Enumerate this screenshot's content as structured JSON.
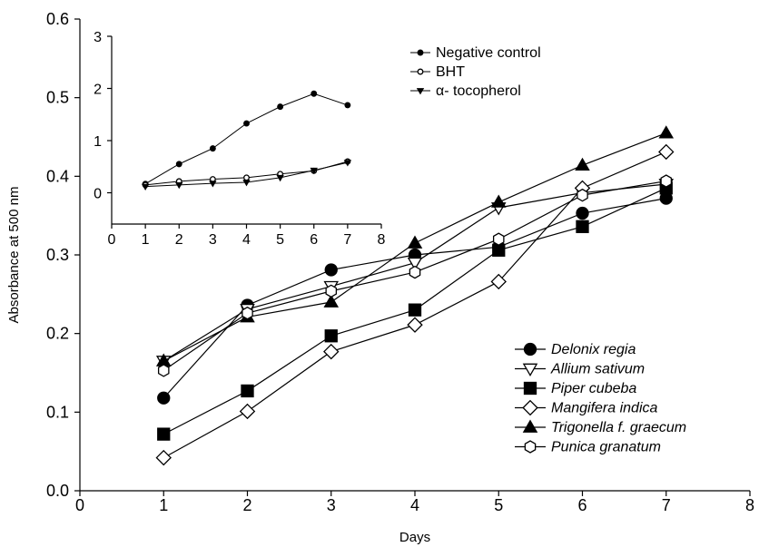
{
  "chart_data": [
    {
      "type": "line",
      "title": "",
      "xlabel": "Days",
      "ylabel": "Absorbance at 500 nm",
      "xlim": [
        0,
        8
      ],
      "ylim": [
        0.0,
        0.6
      ],
      "x_ticks": [
        "0",
        "1",
        "2",
        "3",
        "4",
        "5",
        "6",
        "7",
        "8"
      ],
      "y_ticks": [
        "0.0",
        "0.1",
        "0.2",
        "0.3",
        "0.4",
        "0.5",
        "0.6"
      ],
      "grid": false,
      "legend_position": "bottom-right",
      "x": [
        1,
        2,
        3,
        4,
        5,
        6,
        7
      ],
      "series": [
        {
          "name": "Delonix regia",
          "marker": "filled-circle",
          "values": [
            0.118,
            0.236,
            0.281,
            0.3,
            0.31,
            0.353,
            0.372
          ]
        },
        {
          "name": "Allium sativum",
          "marker": "open-triangle-down",
          "values": [
            0.165,
            0.231,
            0.26,
            0.29,
            0.36,
            0.379,
            0.39
          ]
        },
        {
          "name": "Piper cubeba",
          "marker": "filled-square",
          "values": [
            0.072,
            0.127,
            0.197,
            0.23,
            0.306,
            0.336,
            0.385
          ]
        },
        {
          "name": "Mangifera indica",
          "marker": "open-diamond",
          "values": [
            0.042,
            0.101,
            0.177,
            0.211,
            0.266,
            0.385,
            0.431
          ]
        },
        {
          "name": "Trigonella f. graecum",
          "marker": "filled-triangle-up",
          "values": [
            0.165,
            0.221,
            0.24,
            0.315,
            0.367,
            0.414,
            0.455
          ]
        },
        {
          "name": "Punica granatum",
          "marker": "open-hexagon",
          "values": [
            0.153,
            0.226,
            0.254,
            0.278,
            0.32,
            0.376,
            0.394
          ]
        }
      ]
    },
    {
      "type": "line",
      "title": "",
      "xlabel": "",
      "ylabel": "",
      "xlim": [
        0,
        8
      ],
      "ylim": [
        -0.6,
        3
      ],
      "x_ticks": [
        "0",
        "1",
        "2",
        "3",
        "4",
        "5",
        "6",
        "7",
        "8"
      ],
      "y_ticks": [
        "0",
        "1",
        "2",
        "3"
      ],
      "grid": false,
      "legend_position": "top-right",
      "x": [
        1,
        2,
        3,
        4,
        5,
        6,
        7
      ],
      "series": [
        {
          "name": "Negative control",
          "marker": "small-filled-circle",
          "values": [
            0.17,
            0.55,
            0.85,
            1.33,
            1.65,
            1.9,
            1.68
          ]
        },
        {
          "name": "BHT",
          "marker": "small-open-circle",
          "values": [
            0.15,
            0.22,
            0.26,
            0.29,
            0.36,
            0.42,
            0.6
          ]
        },
        {
          "name": "α- tocopherol",
          "marker": "small-filled-triangle-down",
          "values": [
            0.12,
            0.15,
            0.18,
            0.2,
            0.29,
            0.43,
            0.58
          ]
        }
      ]
    }
  ]
}
